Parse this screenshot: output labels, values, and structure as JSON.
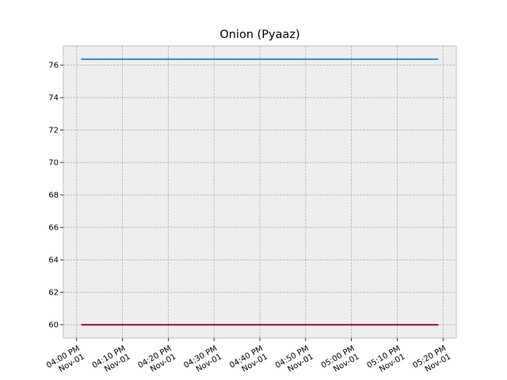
{
  "chart_data": {
    "type": "line",
    "title": "Onion (Pyaaz)",
    "xlabel": "",
    "ylabel": "",
    "grid": true,
    "x": [
      "2023-11-01T16:01",
      "2023-11-01T17:19"
    ],
    "x_tick_values": [
      "2023-11-01T16:00",
      "2023-11-01T16:10",
      "2023-11-01T16:20",
      "2023-11-01T16:30",
      "2023-11-01T16:40",
      "2023-11-01T16:50",
      "2023-11-01T17:00",
      "2023-11-01T17:10",
      "2023-11-01T17:20"
    ],
    "x_tick_labels": [
      [
        "04:00 PM",
        "Nov-01"
      ],
      [
        "04:10 PM",
        "Nov-01"
      ],
      [
        "04:20 PM",
        "Nov-01"
      ],
      [
        "04:30 PM",
        "Nov-01"
      ],
      [
        "04:40 PM",
        "Nov-01"
      ],
      [
        "04:50 PM",
        "Nov-01"
      ],
      [
        "05:00 PM",
        "Nov-01"
      ],
      [
        "05:10 PM",
        "Nov-01"
      ],
      [
        "05:20 PM",
        "Nov-01"
      ]
    ],
    "y_ticks": [
      "60",
      "62",
      "64",
      "66",
      "68",
      "70",
      "72",
      "74",
      "76"
    ],
    "ylim": [
      59.18,
      77.18
    ],
    "series": [
      {
        "values": [
          76.36,
          76.36
        ],
        "color": "#348abd"
      },
      {
        "values": [
          60.0,
          60.0
        ],
        "color": "#a60628"
      }
    ]
  }
}
